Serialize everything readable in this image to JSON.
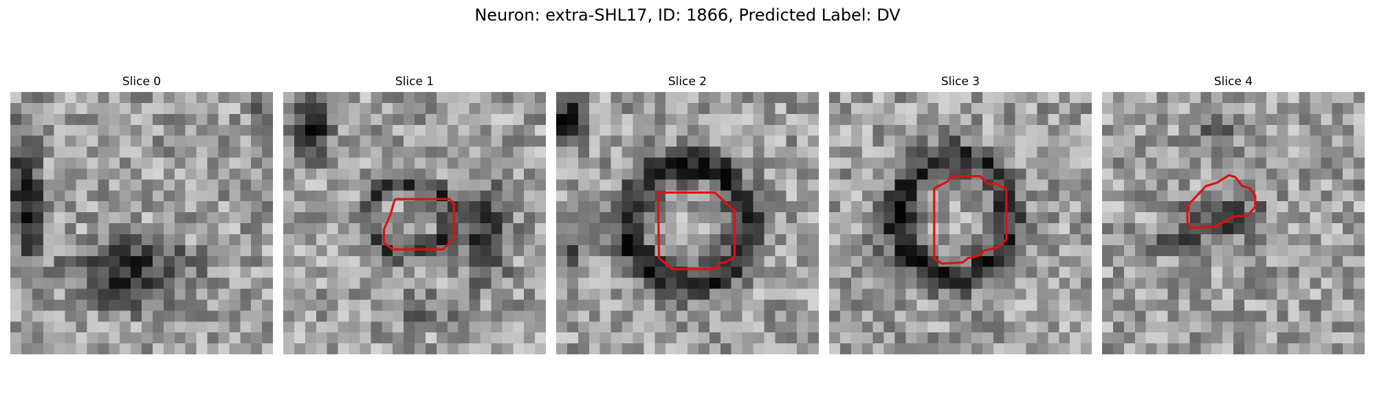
{
  "figure": {
    "title": "Neuron: extra-SHL17, ID: 1866, Predicted Label: DV"
  },
  "panels": [
    {
      "title": "Slice 0",
      "has_contour": false,
      "seed": 11
    },
    {
      "title": "Slice 1",
      "has_contour": true,
      "seed": 23
    },
    {
      "title": "Slice 2",
      "has_contour": true,
      "seed": 37
    },
    {
      "title": "Slice 3",
      "has_contour": true,
      "seed": 41
    },
    {
      "title": "Slice 4",
      "has_contour": true,
      "seed": 53
    }
  ],
  "colors": {
    "contour": "#e01010",
    "background": "#ffffff"
  },
  "image": {
    "colormap": "grayscale",
    "grid": "24x24"
  }
}
